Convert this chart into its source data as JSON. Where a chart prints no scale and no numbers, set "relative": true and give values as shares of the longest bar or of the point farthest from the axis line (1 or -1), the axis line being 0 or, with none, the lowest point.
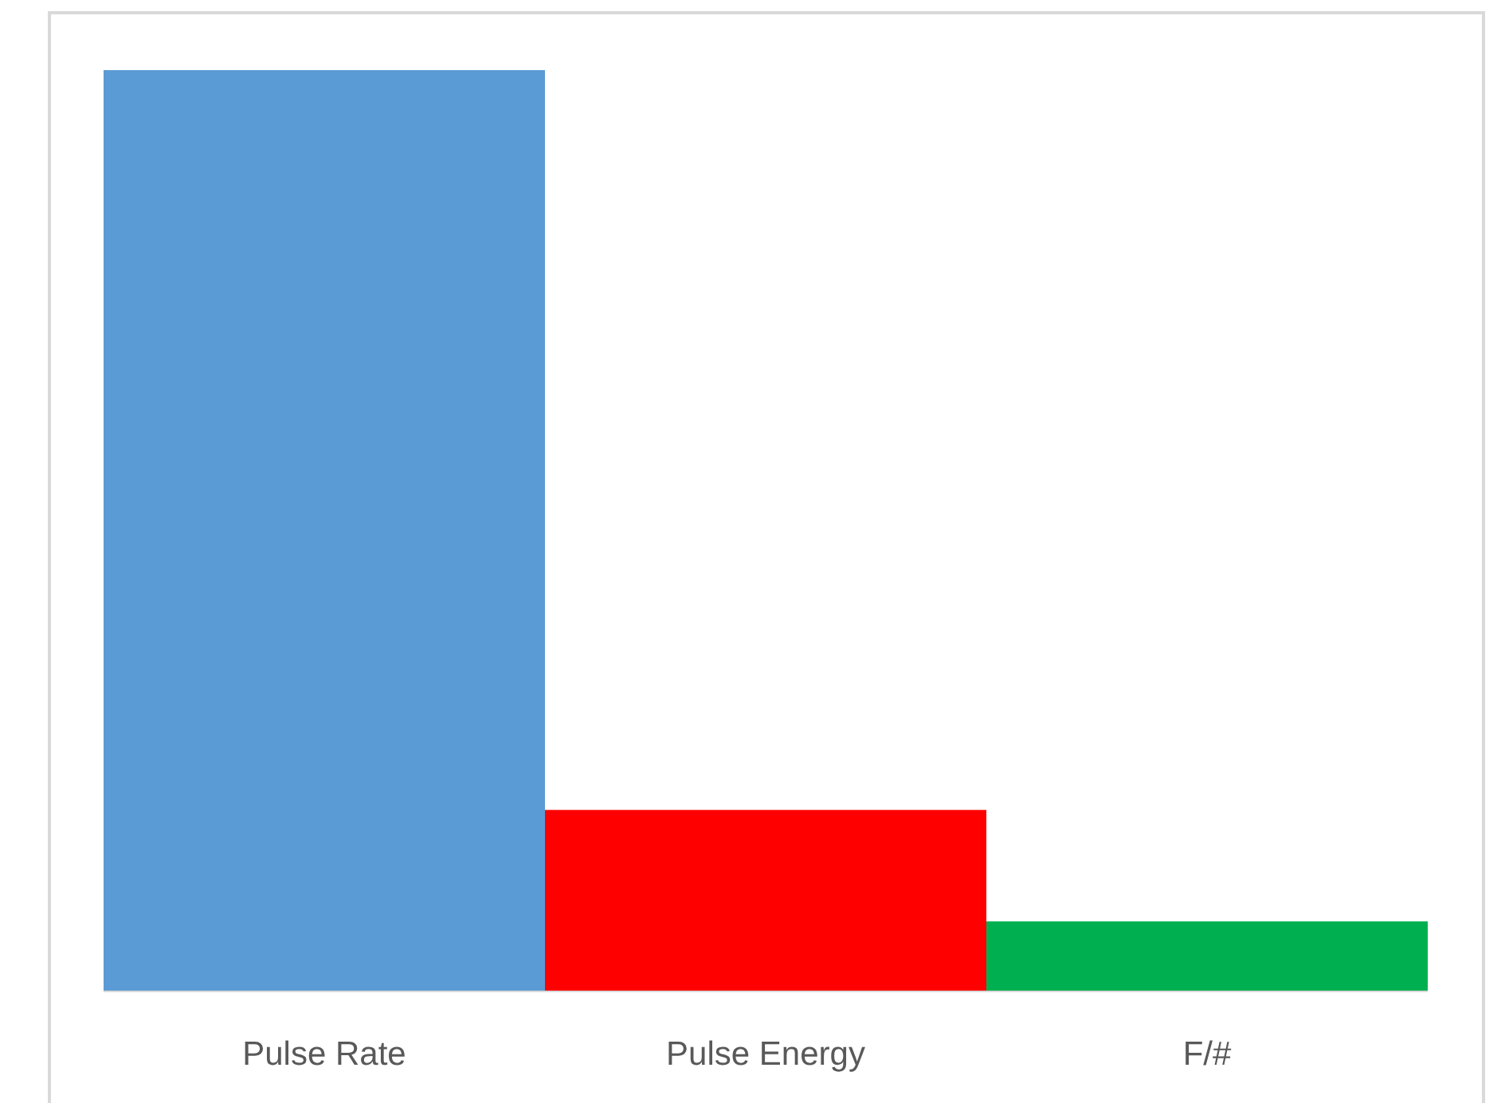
{
  "chart_data": {
    "type": "bar",
    "relative": true,
    "categories": [
      "Pulse Rate",
      "Pulse Energy",
      "F/#"
    ],
    "values": [
      1,
      0.197,
      0.076
    ],
    "colors": [
      "#5b9bd5",
      "#ff0000",
      "#00b050"
    ]
  }
}
